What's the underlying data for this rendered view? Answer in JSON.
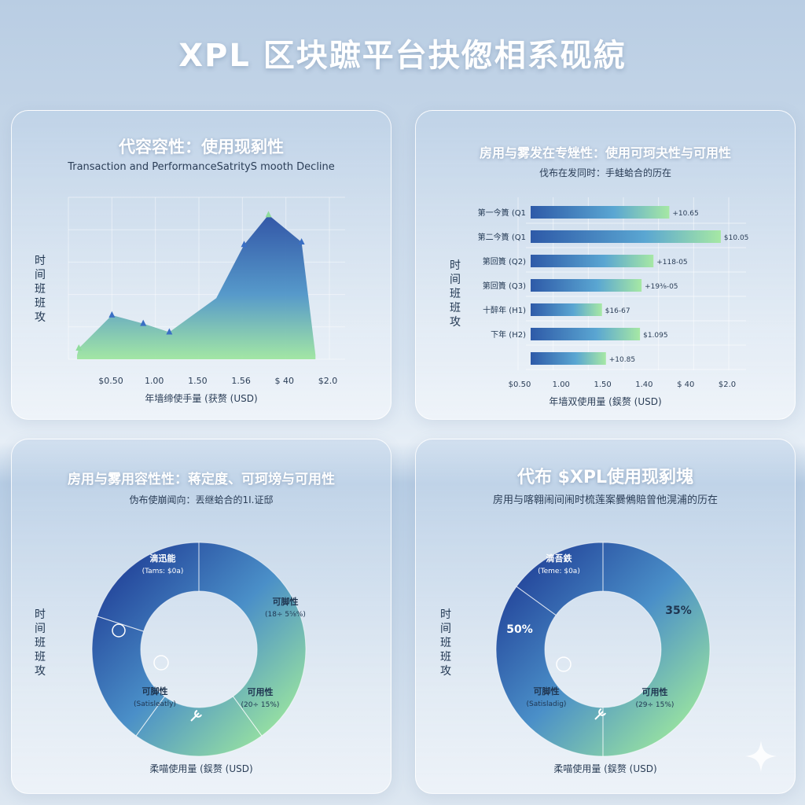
{
  "title": "XPL 区块蹠平台抉偬相系砚綂",
  "panels": {
    "line": {
      "title": "代容容性：使用现剢性",
      "subtitle": "Transaction and PerformanceSatrityS mooth Decline",
      "ylabel": "时间班班攻",
      "xlabel": "年墙缔使手量 (获赘 (USD)"
    },
    "bar": {
      "title": "房用与雾发在专矬性：使用可珂夬性与可用性",
      "subtitle": "伐布在发同时：手蛙蛤合的历在",
      "ylabel": "时间班班攻",
      "xlabel": "年墙双使用量 (鋘赘 (USD)"
    },
    "donut1": {
      "title": "房用与雾用容性性：蒋定度、可珂塝与可用性",
      "subtitle": "伪布使崩闻向：丟继蛤合的1I.证邸",
      "ylabel": "时间班班攻",
      "xlabel": "柔喵使用量 (鋘赘 (USD)"
    },
    "donut2": {
      "title": "代布 $XPL使用现剢塊",
      "subtitle": "房用与喀翱闹间闹时梳莲案爨鵂賠曾他滉浦的历在",
      "ylabel": "时间班班攻",
      "xlabel": "柔喵使用量 (鋘赘 (USD)"
    }
  },
  "colors": {
    "dark_blue": "#2a4fa3",
    "mid_blue": "#4a8dc9",
    "green": "#8fdc9c",
    "marker": "#3a6fc4"
  },
  "chart_data": [
    {
      "type": "area",
      "title": "代容容性：使用现剢性",
      "x_tick_labels": [
        "$0.50",
        "1.00",
        "1.50",
        "1.56",
        "$ 40",
        "$2.0"
      ],
      "series": [
        {
          "values": [
            {
              "x": 0.25,
              "y": 0.05
            },
            {
              "x": 0.3,
              "y": 0.13
            },
            {
              "x": 1.25,
              "y": 0.52
            },
            {
              "x": 2.15,
              "y": 0.42
            },
            {
              "x": 2.9,
              "y": 0.32
            },
            {
              "x": 4.25,
              "y": 0.72
            },
            {
              "x": 5.05,
              "y": 1.35
            },
            {
              "x": 5.75,
              "y": 1.7
            },
            {
              "x": 6.7,
              "y": 1.38
            },
            {
              "x": 7.1,
              "y": 0.05
            }
          ]
        }
      ],
      "markers": [
        {
          "x": 0.3,
          "y": 0.13
        },
        {
          "x": 1.25,
          "y": 0.52
        },
        {
          "x": 2.15,
          "y": 0.42
        },
        {
          "x": 2.9,
          "y": 0.32
        },
        {
          "x": 5.05,
          "y": 1.35
        },
        {
          "x": 5.75,
          "y": 1.7
        },
        {
          "x": 6.7,
          "y": 1.38
        }
      ],
      "xlim": [
        0,
        7.5
      ],
      "ylim": [
        0,
        2
      ],
      "grid": true
    },
    {
      "type": "bar",
      "orientation": "horizontal",
      "title": "房用与雾发在专矬性：使用可珂夬性与可用性",
      "categories": [
        "第一今簣 (Q1",
        "第二今簣 (Q1",
        "第回簣 (Q2)",
        "第回簣 (Q3)",
        "十醉年 (H1)",
        "下年 (H2)",
        ""
      ],
      "values": [
        1.75,
        2.4,
        1.55,
        1.4,
        0.9,
        1.38,
        0.95
      ],
      "value_labels": [
        "+10.65",
        "$10.05",
        "+118-05",
        "+19⅜-05",
        "$16-67",
        "$1.095",
        "+10.85"
      ],
      "x_tick_labels": [
        "$0.50",
        "1.00",
        "1.50",
        "1.40",
        "$ 40",
        "$2.0"
      ],
      "xlim": [
        0,
        2.5
      ],
      "grid": true
    },
    {
      "type": "pie",
      "style": "donut",
      "title": "房用与雾用容性性：蒋定度、可珂塝与可用性",
      "segments": [
        {
          "label": "滴迅能",
          "sublabel": "(Tams: $0a)",
          "value": 40
        },
        {
          "label": "可脚性",
          "sublabel": "(18÷ 5⅝%)",
          "value": 20
        },
        {
          "label": "可用性",
          "sublabel": "(20÷ 15%)",
          "value": 20
        },
        {
          "label": "可脚性",
          "sublabel": "(Satisleatly)",
          "value": 20
        }
      ]
    },
    {
      "type": "pie",
      "style": "donut",
      "title": "代布 $XPL使用现剢塊",
      "segments": [
        {
          "label": "滴吾鉄",
          "sublabel": "(Teme: $0a)",
          "value": 50,
          "value_label": "50%"
        },
        {
          "label": "",
          "sublabel": "",
          "value": 35,
          "value_label": "35%"
        },
        {
          "label": "可用性",
          "sublabel": "(29÷ 15%)",
          "value": 0
        },
        {
          "label": "可脚性",
          "sublabel": "(Satisladig)",
          "value": 15
        }
      ]
    }
  ]
}
